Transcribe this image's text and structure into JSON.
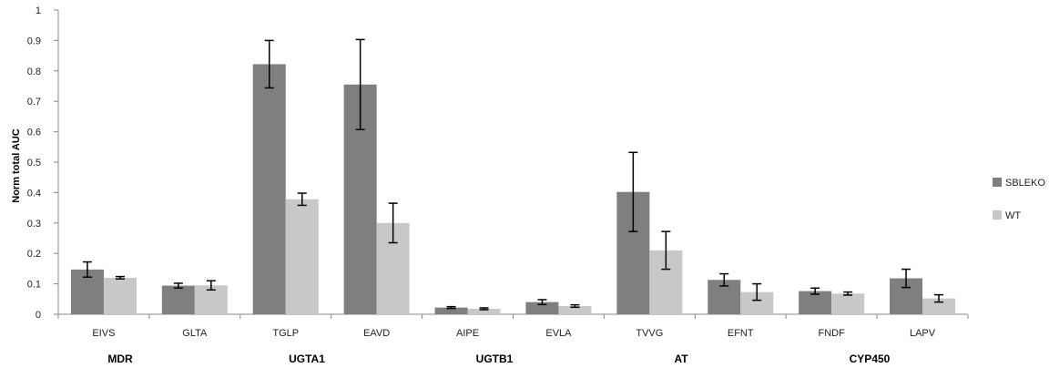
{
  "chart_data": {
    "type": "bar",
    "title": "",
    "xlabel": "",
    "ylabel": "Norm total AUC",
    "ylim": [
      0,
      1
    ],
    "yticks": [
      "0",
      "0.1",
      "0.2",
      "0.3",
      "0.4",
      "0.5",
      "0.6",
      "0.7",
      "0.8",
      "0.9",
      "1"
    ],
    "categories": [
      "EIVS",
      "GLTA",
      "TGLP",
      "EAVD",
      "AIPE",
      "EVLA",
      "TVVG",
      "EFNT",
      "FNDF",
      "LAPV"
    ],
    "groups": [
      {
        "label": "MDR",
        "categories": [
          "EIVS",
          "GLTA"
        ]
      },
      {
        "label": "UGTA1",
        "categories": [
          "TGLP",
          "EAVD"
        ]
      },
      {
        "label": "UGTB1",
        "categories": [
          "AIPE",
          "EVLA"
        ]
      },
      {
        "label": "AT",
        "categories": [
          "TVVG"
        ]
      },
      {
        "label": "CYP450",
        "categories": [
          "EFNT",
          "FNDF",
          "LAPV"
        ]
      }
    ],
    "series": [
      {
        "name": "SBLEKO",
        "color": "#7f7f7f",
        "values": [
          0.147,
          0.094,
          0.822,
          0.755,
          0.022,
          0.04,
          0.402,
          0.113,
          0.076,
          0.118
        ],
        "errors": [
          0.025,
          0.008,
          0.078,
          0.148,
          0.003,
          0.008,
          0.13,
          0.02,
          0.01,
          0.03
        ]
      },
      {
        "name": "WT",
        "color": "#c8c8c8",
        "values": [
          0.12,
          0.095,
          0.378,
          0.3,
          0.018,
          0.027,
          0.21,
          0.073,
          0.068,
          0.052
        ],
        "errors": [
          0.004,
          0.015,
          0.02,
          0.065,
          0.003,
          0.004,
          0.062,
          0.027,
          0.005,
          0.012
        ]
      }
    ],
    "legend_position": "right",
    "grid": false
  }
}
